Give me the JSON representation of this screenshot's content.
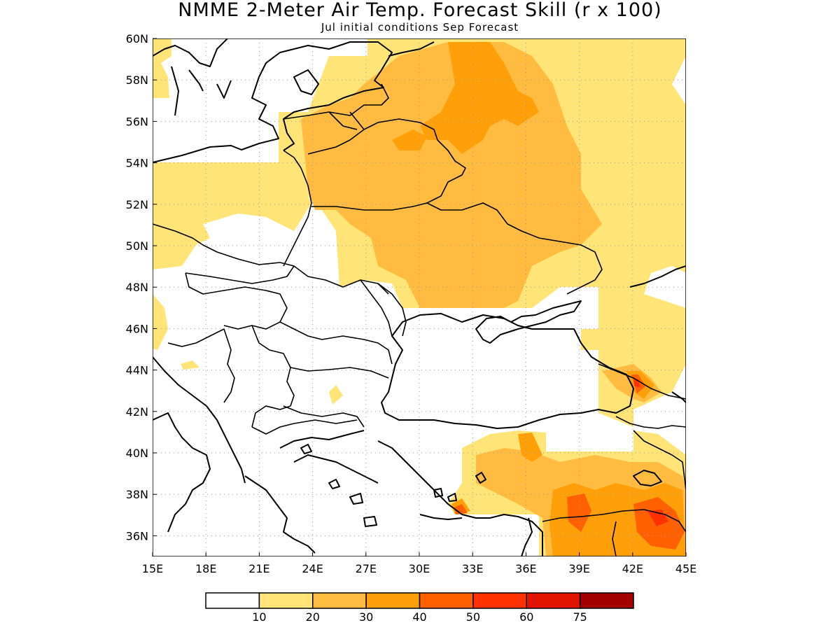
{
  "title": "NMME 2-Meter Air Temp. Forecast Skill (r x 100)",
  "subtitle": "Jul initial conditions  Sep Forecast",
  "map": {
    "lon_range": [
      15,
      45
    ],
    "lat_range": [
      35,
      60
    ],
    "lon_ticks": [
      "15E",
      "18E",
      "21E",
      "24E",
      "27E",
      "30E",
      "33E",
      "36E",
      "39E",
      "42E",
      "45E"
    ],
    "lat_ticks": [
      "60N",
      "58N",
      "56N",
      "54N",
      "52N",
      "50N",
      "48N",
      "46N",
      "44N",
      "42N",
      "40N",
      "38N",
      "36N"
    ]
  },
  "colorbar": {
    "colors": [
      "#ffffff",
      "#ffe478",
      "#ffbc40",
      "#ffa00a",
      "#ff6000",
      "#ff3200",
      "#e11400",
      "#a50000"
    ],
    "labels": [
      "10",
      "20",
      "30",
      "40",
      "50",
      "60",
      "75"
    ]
  }
}
